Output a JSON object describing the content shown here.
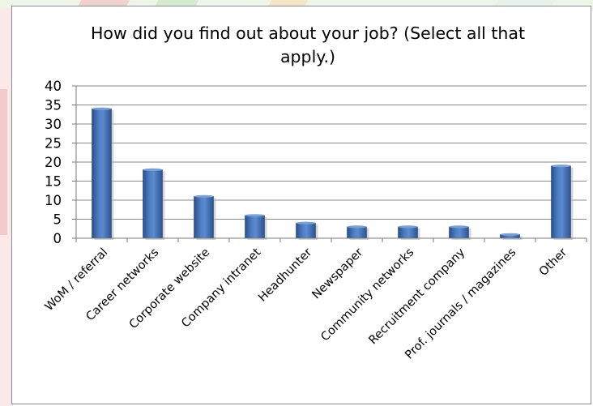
{
  "chart_data": {
    "type": "bar",
    "title_lines": [
      "How did you find out about your job? (Select all that",
      "apply.)"
    ],
    "categories": [
      "WoM / referral",
      "Career networks",
      "Corporate website",
      "Company intranet",
      "Headhunter",
      "Newspaper",
      "Community networks",
      "Recruitment company",
      "Prof. journals / magazines",
      "Other"
    ],
    "values": [
      34,
      18,
      11,
      6,
      4,
      3,
      3,
      3,
      1,
      19
    ],
    "ylim": [
      0,
      40
    ],
    "yticks": [
      "0",
      "5",
      "10",
      "15",
      "20",
      "25",
      "30",
      "35",
      "40"
    ],
    "grid": true,
    "legend": "none",
    "bar_color": "#4a74b8"
  }
}
